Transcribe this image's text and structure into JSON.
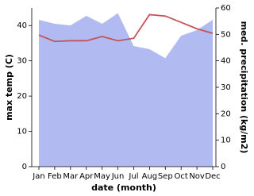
{
  "chart_data": {
    "type": "line",
    "x_label": "date (month)",
    "y_label": "max temp (C)",
    "y2_label": "med. precipitation (kg/m2)",
    "categories": [
      "Jan",
      "Feb",
      "Mar",
      "Apr",
      "May",
      "Jun",
      "Jul",
      "Aug",
      "Sep",
      "Oct",
      "Nov",
      "Dec"
    ],
    "series": [
      {
        "name": "med. precipitation",
        "type": "area",
        "axis": "y2",
        "color": "#b1bbf1",
        "values": [
          55.5,
          54,
          53.4,
          57,
          54,
          58,
          45.6,
          44.4,
          41,
          49.5,
          51.6,
          55.5
        ]
      },
      {
        "name": "max temp",
        "type": "line",
        "color": "#c4525a",
        "values": [
          37.3,
          35.5,
          35.7,
          35.7,
          36.9,
          35.7,
          36.4,
          43.1,
          42.7,
          40.9,
          39.1,
          37.8
        ]
      }
    ],
    "ylim": [
      0,
      45
    ],
    "yticks": [
      0,
      10,
      20,
      30,
      40
    ],
    "y2lim": [
      0,
      60
    ],
    "y2ticks": [
      0,
      10,
      20,
      30,
      40,
      50,
      60
    ]
  }
}
